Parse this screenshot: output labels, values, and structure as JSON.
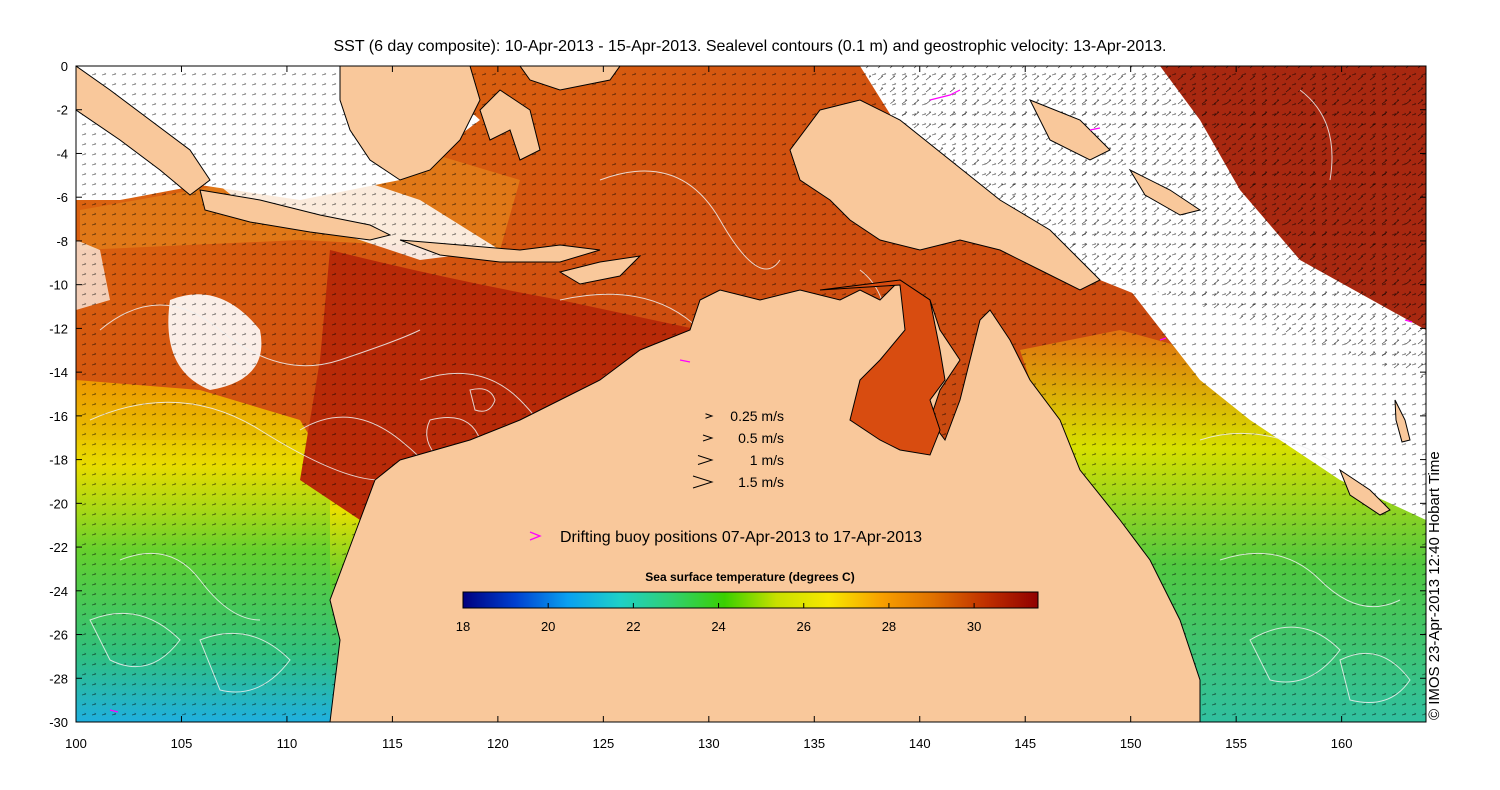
{
  "title": "SST (6 day composite): 10-Apr-2013 - 15-Apr-2013. Sealevel contours (0.1 m) and geostrophic velocity: 13-Apr-2013.",
  "copyright": "© IMOS 23-Apr-2013 12:40 Hobart Time",
  "map": {
    "lon_range": [
      100,
      164
    ],
    "lat_range": [
      -30,
      0
    ],
    "x_ticks": [
      "100",
      "105",
      "110",
      "115",
      "120",
      "125",
      "130",
      "135",
      "140",
      "145",
      "150",
      "155",
      "160"
    ],
    "y_ticks": [
      "0",
      "-2",
      "-4",
      "-6",
      "-8",
      "-10",
      "-12",
      "-14",
      "-16",
      "-18",
      "-20",
      "-22",
      "-24",
      "-26",
      "-28",
      "-30"
    ],
    "colors": {
      "land": "#f9c89b",
      "cloud": "#ffffff",
      "contour": "#f0f0f0",
      "vectors": "#000000",
      "buoy": "#ff00ff"
    }
  },
  "velocity_scale": [
    {
      "label": "0.25 m/s",
      "speed": 0.25
    },
    {
      "label": "0.5 m/s",
      "speed": 0.5
    },
    {
      "label": "1 m/s",
      "speed": 1
    },
    {
      "label": "1.5 m/s",
      "speed": 1.5
    }
  ],
  "buoy_legend": "Drifting buoy positions 07-Apr-2013 to 17-Apr-2013",
  "colorbar": {
    "title": "Sea surface temperature (degrees C)",
    "min": 18,
    "max": 31.5,
    "ticks": [
      "18",
      "20",
      "22",
      "24",
      "26",
      "28",
      "30"
    ],
    "stops": [
      "#00007f",
      "#0040d0",
      "#0aa0f0",
      "#1ed0c8",
      "#30d070",
      "#3ad000",
      "#c8e000",
      "#f8e800",
      "#f8a000",
      "#e07000",
      "#c03000",
      "#900000"
    ]
  }
}
